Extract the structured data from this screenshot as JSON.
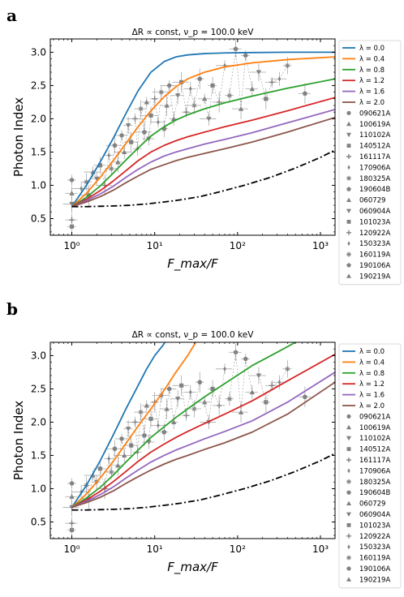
{
  "chart_data": [
    {
      "panel": "a",
      "type": "line",
      "title": "ΔR ∝ const, ν_p = 100.0 keV",
      "xlabel": "F_max/F",
      "ylabel": "Photon Index",
      "xscale": "log",
      "xlim": [
        0.55,
        1500
      ],
      "ylim": [
        0.25,
        3.2
      ],
      "xticks": [
        1,
        10,
        100,
        1000
      ],
      "xtick_labels": [
        "10⁰",
        "10¹",
        "10²",
        "10³"
      ],
      "yticks": [
        0.5,
        1.0,
        1.5,
        2.0,
        2.5,
        3.0
      ],
      "ytick_labels": [
        "0.5",
        "1.0",
        "1.5",
        "2.0",
        "2.5",
        "3.0"
      ],
      "legend_position": "outside-right",
      "series": [
        {
          "name": "λ = 0.0",
          "color": "#1f77b4",
          "x": [
            1,
            1.5,
            2.2,
            3.2,
            4.5,
            6.3,
            9,
            13,
            18,
            25,
            40,
            70,
            150,
            400,
            1500
          ],
          "y": [
            0.68,
            1.0,
            1.35,
            1.72,
            2.08,
            2.42,
            2.7,
            2.86,
            2.93,
            2.96,
            2.98,
            2.99,
            2.995,
            3.0,
            3.0
          ]
        },
        {
          "name": "λ = 0.4",
          "color": "#ff7f0e",
          "x": [
            1,
            1.5,
            2.2,
            3.2,
            4.5,
            6.3,
            9,
            13,
            18,
            25,
            40,
            70,
            150,
            400,
            1500
          ],
          "y": [
            0.68,
            0.88,
            1.12,
            1.38,
            1.63,
            1.88,
            2.12,
            2.33,
            2.48,
            2.6,
            2.7,
            2.78,
            2.84,
            2.89,
            2.93
          ]
        },
        {
          "name": "λ = 0.8",
          "color": "#2ca02c",
          "x": [
            1,
            1.5,
            2.2,
            3.2,
            4.5,
            6.3,
            9,
            13,
            18,
            25,
            40,
            70,
            150,
            400,
            1500
          ],
          "y": [
            0.68,
            0.82,
            0.99,
            1.19,
            1.38,
            1.56,
            1.74,
            1.88,
            1.98,
            2.06,
            2.15,
            2.24,
            2.34,
            2.46,
            2.6
          ]
        },
        {
          "name": "λ = 1.2",
          "color": "#d62728",
          "x": [
            1,
            1.5,
            2.2,
            3.2,
            4.5,
            6.3,
            9,
            13,
            18,
            25,
            40,
            70,
            150,
            400,
            1500
          ],
          "y": [
            0.68,
            0.79,
            0.92,
            1.07,
            1.22,
            1.37,
            1.5,
            1.6,
            1.67,
            1.73,
            1.8,
            1.88,
            1.98,
            2.12,
            2.32
          ]
        },
        {
          "name": "λ = 1.6",
          "color": "#9467bd",
          "x": [
            1,
            1.5,
            2.2,
            3.2,
            4.5,
            6.3,
            9,
            13,
            18,
            25,
            40,
            70,
            150,
            400,
            1500
          ],
          "y": [
            0.68,
            0.77,
            0.87,
            0.99,
            1.12,
            1.24,
            1.35,
            1.44,
            1.5,
            1.55,
            1.62,
            1.69,
            1.79,
            1.94,
            2.14
          ]
        },
        {
          "name": "λ = 2.0",
          "color": "#8c564b",
          "x": [
            1,
            1.5,
            2.2,
            3.2,
            4.5,
            6.3,
            9,
            13,
            18,
            25,
            40,
            70,
            150,
            400,
            1500
          ],
          "y": [
            0.68,
            0.75,
            0.83,
            0.93,
            1.04,
            1.14,
            1.24,
            1.31,
            1.37,
            1.42,
            1.48,
            1.55,
            1.65,
            1.8,
            2.02
          ]
        },
        {
          "name": "",
          "color": "#000000",
          "dash": "dashdot",
          "x": [
            1,
            1.5,
            2.2,
            3.2,
            5,
            8,
            13,
            20,
            35,
            60,
            120,
            250,
            500,
            1000,
            1500
          ],
          "y": [
            0.68,
            0.68,
            0.685,
            0.69,
            0.7,
            0.72,
            0.75,
            0.78,
            0.83,
            0.9,
            1.0,
            1.12,
            1.26,
            1.42,
            1.53
          ]
        }
      ],
      "grb_markers": [
        {
          "name": "090621A",
          "marker": "circle"
        },
        {
          "name": "100619A",
          "marker": "triangle-up"
        },
        {
          "name": "110102A",
          "marker": "triangle-down"
        },
        {
          "name": "140512A",
          "marker": "square"
        },
        {
          "name": "161117A",
          "marker": "plus"
        },
        {
          "name": "170906A",
          "marker": "thin-diamond"
        },
        {
          "name": "180325A",
          "marker": "star"
        },
        {
          "name": "190604B",
          "marker": "pentagon"
        },
        {
          "name": "060729",
          "marker": "triangle-up"
        },
        {
          "name": "060904A",
          "marker": "triangle-down"
        },
        {
          "name": "101023A",
          "marker": "square"
        },
        {
          "name": "120922A",
          "marker": "plus"
        },
        {
          "name": "150323A",
          "marker": "thin-diamond"
        },
        {
          "name": "160119A",
          "marker": "star"
        },
        {
          "name": "190106A",
          "marker": "pentagon"
        },
        {
          "name": "190219A",
          "marker": "triangle-up"
        }
      ],
      "observations": [
        {
          "x": 1.0,
          "y": 1.08
        },
        {
          "x": 1.0,
          "y": 0.88
        },
        {
          "x": 1.0,
          "y": 0.72
        },
        {
          "x": 1.0,
          "y": 0.38
        },
        {
          "x": 1.0,
          "y": 0.48
        },
        {
          "x": 1.3,
          "y": 0.95
        },
        {
          "x": 1.5,
          "y": 1.05
        },
        {
          "x": 1.6,
          "y": 0.85
        },
        {
          "x": 1.8,
          "y": 1.2
        },
        {
          "x": 2.0,
          "y": 1.1
        },
        {
          "x": 2.2,
          "y": 1.3
        },
        {
          "x": 2.5,
          "y": 1.0
        },
        {
          "x": 2.8,
          "y": 1.45
        },
        {
          "x": 3.0,
          "y": 1.25
        },
        {
          "x": 3.3,
          "y": 1.6
        },
        {
          "x": 3.6,
          "y": 1.35
        },
        {
          "x": 4.0,
          "y": 1.75
        },
        {
          "x": 4.3,
          "y": 1.5
        },
        {
          "x": 4.8,
          "y": 1.9
        },
        {
          "x": 5.2,
          "y": 1.65
        },
        {
          "x": 5.8,
          "y": 2.0
        },
        {
          "x": 6.2,
          "y": 1.55
        },
        {
          "x": 6.8,
          "y": 2.15
        },
        {
          "x": 7.5,
          "y": 1.8
        },
        {
          "x": 8.0,
          "y": 2.25
        },
        {
          "x": 8.5,
          "y": 1.7
        },
        {
          "x": 9.0,
          "y": 2.05
        },
        {
          "x": 10,
          "y": 2.3
        },
        {
          "x": 11,
          "y": 1.95
        },
        {
          "x": 12,
          "y": 2.4
        },
        {
          "x": 13,
          "y": 1.85
        },
        {
          "x": 14,
          "y": 2.2
        },
        {
          "x": 15,
          "y": 2.5
        },
        {
          "x": 17,
          "y": 2.0
        },
        {
          "x": 19,
          "y": 2.35
        },
        {
          "x": 21,
          "y": 2.55
        },
        {
          "x": 24,
          "y": 2.1
        },
        {
          "x": 27,
          "y": 2.45
        },
        {
          "x": 30,
          "y": 2.2
        },
        {
          "x": 35,
          "y": 2.6
        },
        {
          "x": 40,
          "y": 2.3
        },
        {
          "x": 45,
          "y": 2.0
        },
        {
          "x": 50,
          "y": 2.5
        },
        {
          "x": 60,
          "y": 2.25
        },
        {
          "x": 70,
          "y": 2.8
        },
        {
          "x": 80,
          "y": 2.35
        },
        {
          "x": 95,
          "y": 3.05
        },
        {
          "x": 110,
          "y": 2.15
        },
        {
          "x": 125,
          "y": 2.95
        },
        {
          "x": 150,
          "y": 2.45
        },
        {
          "x": 180,
          "y": 2.7
        },
        {
          "x": 220,
          "y": 2.3
        },
        {
          "x": 260,
          "y": 2.55
        },
        {
          "x": 320,
          "y": 2.6
        },
        {
          "x": 400,
          "y": 2.8
        },
        {
          "x": 650,
          "y": 2.38
        }
      ]
    },
    {
      "panel": "b",
      "type": "line",
      "title": "ΔR ∝ const, ν_p = 100.0 keV",
      "xlabel": "F_max/F",
      "ylabel": "Photon Index",
      "xscale": "log",
      "xlim": [
        0.55,
        1500
      ],
      "ylim": [
        0.25,
        3.2
      ],
      "xticks": [
        1,
        10,
        100,
        1000
      ],
      "xtick_labels": [
        "10⁰",
        "10¹",
        "10²",
        "10³"
      ],
      "yticks": [
        0.5,
        1.0,
        1.5,
        2.0,
        2.5,
        3.0
      ],
      "ytick_labels": [
        "0.5",
        "1.0",
        "1.5",
        "2.0",
        "2.5",
        "3.0"
      ],
      "legend_position": "outside-right",
      "series": [
        {
          "name": "λ = 0.0",
          "color": "#1f77b4",
          "x": [
            1,
            1.5,
            2.2,
            3.2,
            4.5,
            6.3,
            8,
            10,
            12.5,
            15
          ],
          "y": [
            0.72,
            1.05,
            1.42,
            1.82,
            2.2,
            2.55,
            2.8,
            3.0,
            3.15,
            3.3
          ]
        },
        {
          "name": "λ = 0.4",
          "color": "#ff7f0e",
          "x": [
            1,
            1.5,
            2.2,
            3.2,
            4.5,
            6.3,
            9,
            13,
            18,
            25,
            35
          ],
          "y": [
            0.72,
            0.92,
            1.16,
            1.42,
            1.68,
            1.94,
            2.2,
            2.48,
            2.75,
            3.0,
            3.3
          ]
        },
        {
          "name": "λ = 0.8",
          "color": "#2ca02c",
          "x": [
            1,
            1.5,
            2.2,
            3.2,
            4.5,
            6.3,
            9,
            13,
            18,
            25,
            40,
            70,
            150,
            300,
            500
          ],
          "y": [
            0.72,
            0.86,
            1.02,
            1.21,
            1.4,
            1.58,
            1.77,
            1.93,
            2.07,
            2.2,
            2.38,
            2.58,
            2.85,
            3.05,
            3.2
          ]
        },
        {
          "name": "λ = 1.2",
          "color": "#d62728",
          "x": [
            1,
            1.5,
            2.2,
            3.2,
            4.5,
            6.3,
            9,
            13,
            18,
            25,
            40,
            70,
            150,
            400,
            1500
          ],
          "y": [
            0.72,
            0.83,
            0.96,
            1.11,
            1.26,
            1.41,
            1.55,
            1.67,
            1.77,
            1.86,
            1.98,
            2.12,
            2.32,
            2.62,
            3.02
          ]
        },
        {
          "name": "λ = 1.6",
          "color": "#9467bd",
          "x": [
            1,
            1.5,
            2.2,
            3.2,
            4.5,
            6.3,
            9,
            13,
            18,
            25,
            40,
            70,
            150,
            400,
            1500
          ],
          "y": [
            0.72,
            0.81,
            0.91,
            1.03,
            1.16,
            1.28,
            1.4,
            1.5,
            1.58,
            1.65,
            1.75,
            1.86,
            2.02,
            2.3,
            2.75
          ]
        },
        {
          "name": "λ = 2.0",
          "color": "#8c564b",
          "x": [
            1,
            1.5,
            2.2,
            3.2,
            4.5,
            6.3,
            9,
            13,
            18,
            25,
            40,
            70,
            150,
            400,
            1500
          ],
          "y": [
            0.72,
            0.79,
            0.87,
            0.97,
            1.08,
            1.18,
            1.28,
            1.37,
            1.44,
            1.5,
            1.59,
            1.69,
            1.85,
            2.12,
            2.6
          ]
        },
        {
          "name": "",
          "color": "#000000",
          "dash": "dashdot",
          "x": [
            1,
            1.5,
            2.2,
            3.2,
            5,
            8,
            13,
            20,
            35,
            60,
            120,
            250,
            500,
            1000,
            1500
          ],
          "y": [
            0.68,
            0.68,
            0.685,
            0.69,
            0.7,
            0.72,
            0.75,
            0.78,
            0.83,
            0.9,
            1.0,
            1.12,
            1.26,
            1.42,
            1.53
          ]
        }
      ],
      "grb_markers": [
        {
          "name": "090621A",
          "marker": "circle"
        },
        {
          "name": "100619A",
          "marker": "triangle-up"
        },
        {
          "name": "110102A",
          "marker": "triangle-down"
        },
        {
          "name": "140512A",
          "marker": "square"
        },
        {
          "name": "161117A",
          "marker": "plus"
        },
        {
          "name": "170906A",
          "marker": "thin-diamond"
        },
        {
          "name": "180325A",
          "marker": "star"
        },
        {
          "name": "190604B",
          "marker": "pentagon"
        },
        {
          "name": "060729",
          "marker": "triangle-up"
        },
        {
          "name": "060904A",
          "marker": "triangle-down"
        },
        {
          "name": "101023A",
          "marker": "square"
        },
        {
          "name": "120922A",
          "marker": "plus"
        },
        {
          "name": "150323A",
          "marker": "thin-diamond"
        },
        {
          "name": "160119A",
          "marker": "star"
        },
        {
          "name": "190106A",
          "marker": "pentagon"
        },
        {
          "name": "190219A",
          "marker": "triangle-up"
        }
      ],
      "observations": [
        {
          "x": 1.0,
          "y": 1.08
        },
        {
          "x": 1.0,
          "y": 0.88
        },
        {
          "x": 1.0,
          "y": 0.72
        },
        {
          "x": 1.0,
          "y": 0.38
        },
        {
          "x": 1.0,
          "y": 0.48
        },
        {
          "x": 1.3,
          "y": 0.95
        },
        {
          "x": 1.5,
          "y": 1.05
        },
        {
          "x": 1.6,
          "y": 0.85
        },
        {
          "x": 1.8,
          "y": 1.2
        },
        {
          "x": 2.0,
          "y": 1.1
        },
        {
          "x": 2.2,
          "y": 1.3
        },
        {
          "x": 2.5,
          "y": 1.0
        },
        {
          "x": 2.8,
          "y": 1.45
        },
        {
          "x": 3.0,
          "y": 1.25
        },
        {
          "x": 3.3,
          "y": 1.6
        },
        {
          "x": 3.6,
          "y": 1.35
        },
        {
          "x": 4.0,
          "y": 1.75
        },
        {
          "x": 4.3,
          "y": 1.5
        },
        {
          "x": 4.8,
          "y": 1.9
        },
        {
          "x": 5.2,
          "y": 1.65
        },
        {
          "x": 5.8,
          "y": 2.0
        },
        {
          "x": 6.2,
          "y": 1.55
        },
        {
          "x": 6.8,
          "y": 2.15
        },
        {
          "x": 7.5,
          "y": 1.8
        },
        {
          "x": 8.0,
          "y": 2.25
        },
        {
          "x": 8.5,
          "y": 1.7
        },
        {
          "x": 9.0,
          "y": 2.05
        },
        {
          "x": 10,
          "y": 2.3
        },
        {
          "x": 11,
          "y": 1.95
        },
        {
          "x": 12,
          "y": 2.4
        },
        {
          "x": 13,
          "y": 1.85
        },
        {
          "x": 14,
          "y": 2.2
        },
        {
          "x": 15,
          "y": 2.5
        },
        {
          "x": 17,
          "y": 2.0
        },
        {
          "x": 19,
          "y": 2.35
        },
        {
          "x": 21,
          "y": 2.55
        },
        {
          "x": 24,
          "y": 2.1
        },
        {
          "x": 27,
          "y": 2.45
        },
        {
          "x": 30,
          "y": 2.2
        },
        {
          "x": 35,
          "y": 2.6
        },
        {
          "x": 40,
          "y": 2.3
        },
        {
          "x": 45,
          "y": 2.0
        },
        {
          "x": 50,
          "y": 2.5
        },
        {
          "x": 60,
          "y": 2.25
        },
        {
          "x": 70,
          "y": 2.8
        },
        {
          "x": 80,
          "y": 2.35
        },
        {
          "x": 95,
          "y": 3.05
        },
        {
          "x": 110,
          "y": 2.15
        },
        {
          "x": 125,
          "y": 2.95
        },
        {
          "x": 150,
          "y": 2.45
        },
        {
          "x": 180,
          "y": 2.7
        },
        {
          "x": 220,
          "y": 2.3
        },
        {
          "x": 260,
          "y": 2.55
        },
        {
          "x": 320,
          "y": 2.6
        },
        {
          "x": 400,
          "y": 2.8
        },
        {
          "x": 650,
          "y": 2.38
        }
      ]
    }
  ]
}
